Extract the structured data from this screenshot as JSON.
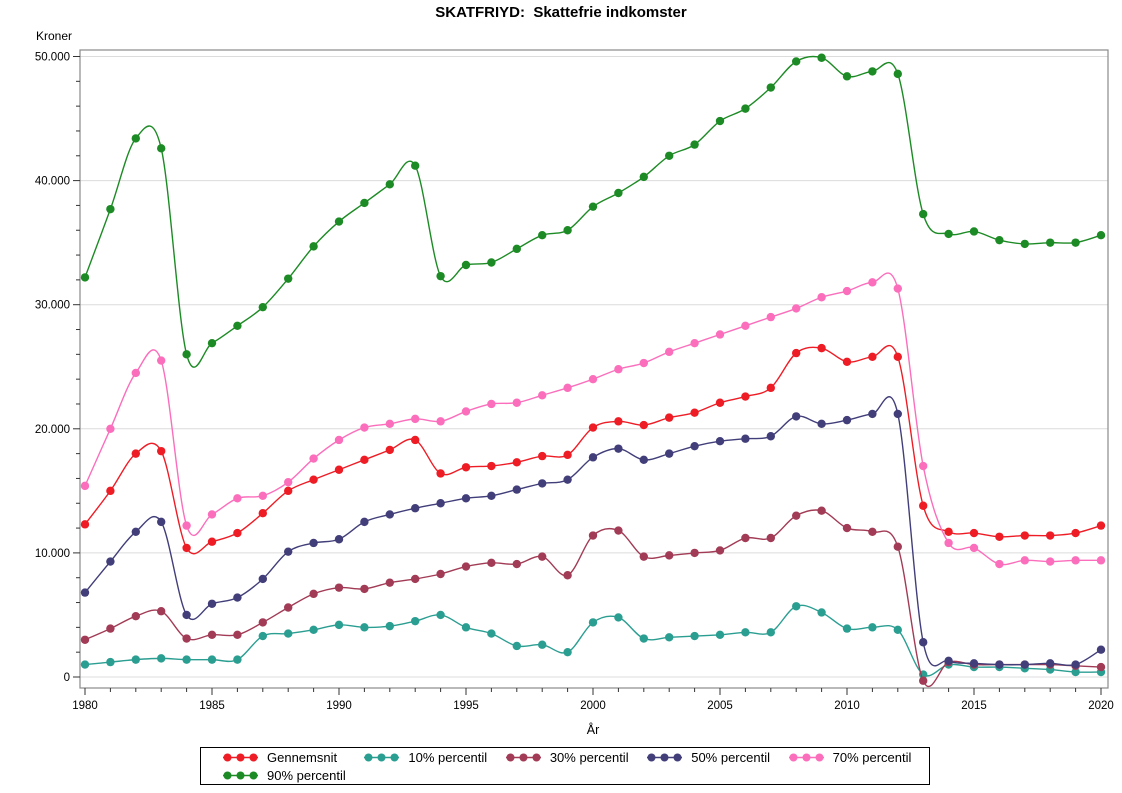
{
  "title": "SKATFRIYD:  Skattefrie indkomster",
  "y_axis": {
    "label": "Kroner",
    "tick_labels": [
      "0",
      "10.000",
      "20.000",
      "30.000",
      "40.000",
      "50.000"
    ],
    "tick_values": [
      0,
      10000,
      20000,
      30000,
      40000,
      50000
    ],
    "minor_step": 2000,
    "min": 0,
    "max": 50000
  },
  "x_axis": {
    "label": "År",
    "tick_labels": [
      "1980",
      "1985",
      "1990",
      "1995",
      "2000",
      "2005",
      "2010",
      "2015",
      "2020"
    ],
    "tick_values": [
      1980,
      1985,
      1990,
      1995,
      2000,
      2005,
      2010,
      2015,
      2020
    ],
    "minor_step": 1,
    "min": 1980,
    "max": 2020
  },
  "colors": {
    "grid": "#dcdcdc",
    "frame": "#8a8a8a",
    "tick": "#333333",
    "text": "#000000"
  },
  "legend": {
    "row_split": [
      5,
      1
    ]
  },
  "chart_data": {
    "type": "line",
    "interpolation": "spline",
    "markers": "filled-circle",
    "grid": "horizontal-major",
    "legend_position": "bottom",
    "title": "SKATFRIYD:  Skattefrie indkomster",
    "xlabel": "År",
    "ylabel": "Kroner",
    "ylim": [
      0,
      50000
    ],
    "xlim": [
      1980,
      2020
    ],
    "x": [
      1980,
      1981,
      1982,
      1983,
      1984,
      1985,
      1986,
      1987,
      1988,
      1989,
      1990,
      1991,
      1992,
      1993,
      1994,
      1995,
      1996,
      1997,
      1998,
      1999,
      2000,
      2001,
      2002,
      2003,
      2004,
      2005,
      2006,
      2007,
      2008,
      2009,
      2010,
      2011,
      2012,
      2013,
      2014,
      2015,
      2016,
      2017,
      2018,
      2019,
      2020
    ],
    "series": [
      {
        "name": "Gennemsnit",
        "color": "#ee1c25",
        "values": [
          12300,
          15000,
          18000,
          18200,
          10400,
          10900,
          11600,
          13200,
          15000,
          15900,
          16700,
          17500,
          18300,
          19100,
          16400,
          16900,
          17000,
          17300,
          17800,
          17900,
          20100,
          20600,
          20300,
          20900,
          21300,
          22100,
          22600,
          23300,
          26100,
          26500,
          25400,
          25800,
          25800,
          13800,
          11700,
          11600,
          11300,
          11400,
          11400,
          11600,
          12200
        ]
      },
      {
        "name": "10% percentil",
        "color": "#2b9e92",
        "values": [
          1000,
          1200,
          1400,
          1500,
          1400,
          1400,
          1400,
          3300,
          3500,
          3800,
          4200,
          4000,
          4100,
          4500,
          5000,
          4000,
          3500,
          2500,
          2600,
          2000,
          4400,
          4800,
          3100,
          3200,
          3300,
          3400,
          3600,
          3600,
          5700,
          5200,
          3900,
          4000,
          3800,
          200,
          1000,
          800,
          800,
          700,
          600,
          400,
          400
        ]
      },
      {
        "name": "30% percentil",
        "color": "#a23b55",
        "values": [
          3000,
          3900,
          4900,
          5300,
          3100,
          3400,
          3400,
          4400,
          5600,
          6700,
          7200,
          7100,
          7600,
          7900,
          8300,
          8900,
          9200,
          9100,
          9700,
          8200,
          11400,
          11800,
          9700,
          9800,
          10000,
          10200,
          11200,
          11200,
          13000,
          13400,
          12000,
          11700,
          10500,
          -300,
          1200,
          1000,
          1000,
          1000,
          1000,
          900,
          800
        ]
      },
      {
        "name": "50% percentil",
        "color": "#413e79",
        "values": [
          6800,
          9300,
          11700,
          12500,
          5000,
          5900,
          6400,
          7900,
          10100,
          10800,
          11100,
          12500,
          13100,
          13600,
          14000,
          14400,
          14600,
          15100,
          15600,
          15900,
          17700,
          18400,
          17500,
          18000,
          18600,
          19000,
          19200,
          19400,
          21000,
          20400,
          20700,
          21200,
          21200,
          2800,
          1300,
          1100,
          1000,
          1000,
          1100,
          1000,
          2200
        ]
      },
      {
        "name": "70% percentil",
        "color": "#fb6ebc",
        "values": [
          15400,
          20000,
          24500,
          25500,
          12200,
          13100,
          14400,
          14600,
          15700,
          17600,
          19100,
          20100,
          20400,
          20800,
          20600,
          21400,
          22000,
          22100,
          22700,
          23300,
          24000,
          24800,
          25300,
          26200,
          26900,
          27600,
          28300,
          29000,
          29700,
          30600,
          31100,
          31800,
          31300,
          17000,
          10800,
          10400,
          9100,
          9400,
          9300,
          9400,
          9400
        ]
      },
      {
        "name": "90% percentil",
        "color": "#1d8b25",
        "values": [
          32200,
          37700,
          43400,
          42600,
          26000,
          26900,
          28300,
          29800,
          32100,
          34700,
          36700,
          38200,
          39700,
          41200,
          32300,
          33200,
          33400,
          34500,
          35600,
          36000,
          37900,
          39000,
          40300,
          42000,
          42900,
          44800,
          45800,
          47500,
          49600,
          49900,
          48400,
          48800,
          48600,
          37300,
          35700,
          35900,
          35200,
          34900,
          35000,
          35000,
          35600
        ]
      }
    ]
  }
}
